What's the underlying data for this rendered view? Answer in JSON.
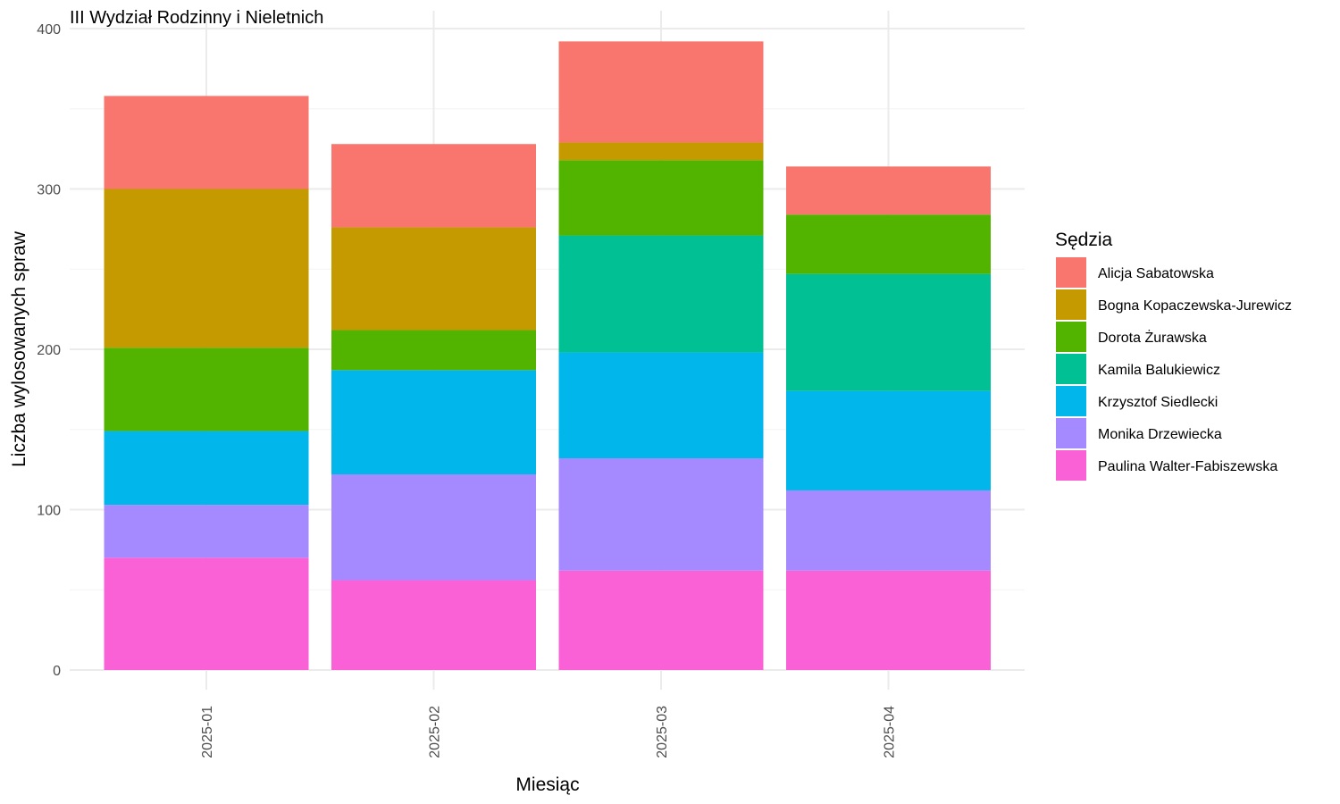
{
  "chart_data": {
    "type": "bar",
    "stacked": true,
    "title": "III Wydział Rodzinny i Nieletnich",
    "xlabel": "Miesiąc",
    "ylabel": "Liczba wylosowanych spraw",
    "ylim": [
      0,
      400
    ],
    "yticks": [
      0,
      100,
      200,
      300,
      400
    ],
    "grid": true,
    "legend_title": "Sędzia",
    "legend_position": "right",
    "categories": [
      "2025-01",
      "2025-02",
      "2025-03",
      "2025-04"
    ],
    "series": [
      {
        "name": "Paulina Walter-Fabiszewska",
        "color": "#FB61D7",
        "values": [
          70,
          56,
          62,
          62
        ]
      },
      {
        "name": "Monika Drzewiecka",
        "color": "#A58AFF",
        "values": [
          33,
          66,
          70,
          50
        ]
      },
      {
        "name": "Krzysztof Siedlecki",
        "color": "#00B6EB",
        "values": [
          46,
          65,
          66,
          62
        ]
      },
      {
        "name": "Kamila Balukiewicz",
        "color": "#00C094",
        "values": [
          0,
          0,
          73,
          73
        ]
      },
      {
        "name": "Dorota Żurawska",
        "color": "#53B400",
        "values": [
          52,
          25,
          47,
          37
        ]
      },
      {
        "name": "Bogna Kopaczewska-Jurewicz",
        "color": "#C49A00",
        "values": [
          99,
          64,
          11,
          0
        ]
      },
      {
        "name": "Alicja Sabatowska",
        "color": "#F8766D",
        "values": [
          58,
          52,
          63,
          30
        ]
      }
    ],
    "legend_order": [
      "Alicja Sabatowska",
      "Bogna Kopaczewska-Jurewicz",
      "Dorota Żurawska",
      "Kamila Balukiewicz",
      "Krzysztof Siedlecki",
      "Monika Drzewiecka",
      "Paulina Walter-Fabiszewska"
    ]
  }
}
